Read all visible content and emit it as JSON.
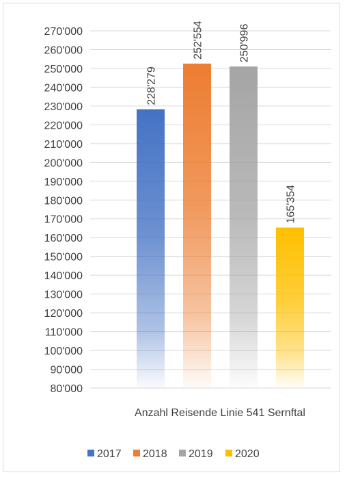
{
  "chart_data": {
    "type": "bar",
    "title": "",
    "xlabel": "Anzahl Reisende Linie 541 Sernftal",
    "ylabel": "",
    "ylim": [
      80000,
      270000
    ],
    "ytick_step": 10000,
    "ytick_labels": [
      "80'000",
      "90'000",
      "100'000",
      "110'000",
      "120'000",
      "130'000",
      "140'000",
      "150'000",
      "160'000",
      "170'000",
      "180'000",
      "190'000",
      "200'000",
      "210'000",
      "220'000",
      "230'000",
      "240'000",
      "250'000",
      "260'000",
      "270'000"
    ],
    "grid": true,
    "legend_position": "bottom",
    "series": [
      {
        "name": "2017",
        "value": 228279,
        "label": "228'279",
        "color": "#4472c4"
      },
      {
        "name": "2018",
        "value": 252554,
        "label": "252'554",
        "color": "#ed7d31"
      },
      {
        "name": "2019",
        "value": 250996,
        "label": "250'996",
        "color": "#a5a5a5"
      },
      {
        "name": "2020",
        "value": 165354,
        "label": "165'354",
        "color": "#ffc000"
      }
    ]
  }
}
